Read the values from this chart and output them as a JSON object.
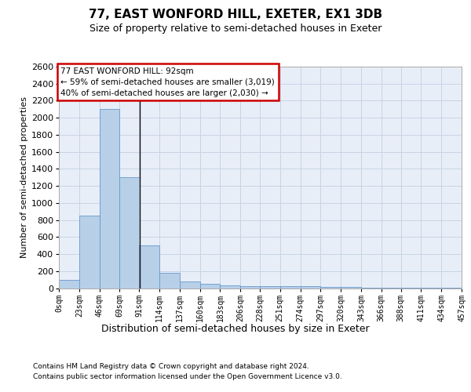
{
  "title": "77, EAST WONFORD HILL, EXETER, EX1 3DB",
  "subtitle": "Size of property relative to semi-detached houses in Exeter",
  "xlabel": "Distribution of semi-detached houses by size in Exeter",
  "ylabel": "Number of semi-detached properties",
  "footer_line1": "Contains HM Land Registry data © Crown copyright and database right 2024.",
  "footer_line2": "Contains public sector information licensed under the Open Government Licence v3.0.",
  "annotation_title": "77 EAST WONFORD HILL: 92sqm",
  "annotation_line2": "← 59% of semi-detached houses are smaller (3,019)",
  "annotation_line3": "40% of semi-detached houses are larger (2,030) →",
  "bar_color": "#b8cfe8",
  "bar_edge_color": "#6699cc",
  "grid_color": "#c8d4e4",
  "background_color": "#e8eef8",
  "property_line_color": "#111111",
  "annotation_box_facecolor": "#ffffff",
  "annotation_box_edgecolor": "#cc0000",
  "ylim": [
    0,
    2600
  ],
  "yticks": [
    0,
    200,
    400,
    600,
    800,
    1000,
    1200,
    1400,
    1600,
    1800,
    2000,
    2200,
    2400,
    2600
  ],
  "bin_edges": [
    0,
    23,
    46,
    69,
    91,
    114,
    137,
    160,
    183,
    206,
    228,
    251,
    274,
    297,
    320,
    343,
    366,
    388,
    411,
    434,
    457
  ],
  "bin_labels": [
    "0sqm",
    "23sqm",
    "46sqm",
    "69sqm",
    "91sqm",
    "114sqm",
    "137sqm",
    "160sqm",
    "183sqm",
    "206sqm",
    "228sqm",
    "251sqm",
    "274sqm",
    "297sqm",
    "320sqm",
    "343sqm",
    "366sqm",
    "388sqm",
    "411sqm",
    "434sqm",
    "457sqm"
  ],
  "bar_values": [
    100,
    850,
    2100,
    1300,
    500,
    175,
    75,
    50,
    30,
    25,
    25,
    25,
    20,
    15,
    10,
    5,
    5,
    5,
    5,
    5
  ],
  "property_sqm": 92,
  "title_fontsize": 11,
  "subtitle_fontsize": 9,
  "ylabel_fontsize": 8,
  "xlabel_fontsize": 9,
  "ytick_fontsize": 8,
  "xtick_fontsize": 7,
  "annotation_fontsize": 7.5,
  "footer_fontsize": 6.5
}
